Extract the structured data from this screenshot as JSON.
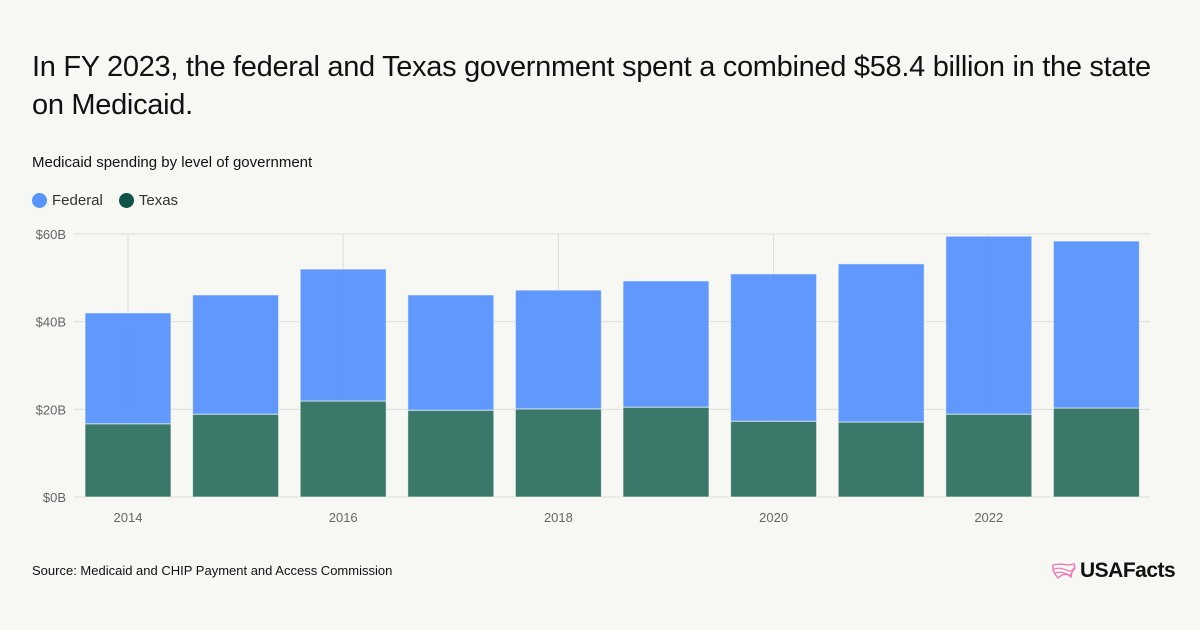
{
  "title": "In FY 2023, the federal and Texas government spent a combined $58.4 billion in the state on Medicaid.",
  "source": "Source: Medicaid and CHIP Payment and Access Commission",
  "logo_text": "USAFacts",
  "chart_data": {
    "type": "bar",
    "stacked": true,
    "subtitle": "Medicaid spending by level of government",
    "categories": [
      "2014",
      "2015",
      "2016",
      "2017",
      "2018",
      "2019",
      "2020",
      "2021",
      "2022",
      "2023"
    ],
    "x_tick_labels": [
      "2014",
      "2016",
      "2018",
      "2020",
      "2022"
    ],
    "series": [
      {
        "name": "Texas",
        "color": "#2f7262",
        "values": [
          16.7,
          18.9,
          21.9,
          19.8,
          20.1,
          20.5,
          17.3,
          17.1,
          18.9,
          20.3
        ]
      },
      {
        "name": "Federal",
        "color": "#5794fb",
        "values": [
          25.3,
          27.2,
          30.1,
          26.3,
          27.1,
          28.8,
          33.6,
          36.1,
          40.6,
          38.1
        ]
      }
    ],
    "legend_order": [
      "Federal",
      "Texas"
    ],
    "ylim": [
      0,
      60
    ],
    "y_ticks": [
      0,
      20,
      40,
      60
    ],
    "y_tick_labels": [
      "$0B",
      "$20B",
      "$40B",
      "$60B"
    ],
    "grid": true,
    "legend_position": "top-left"
  }
}
